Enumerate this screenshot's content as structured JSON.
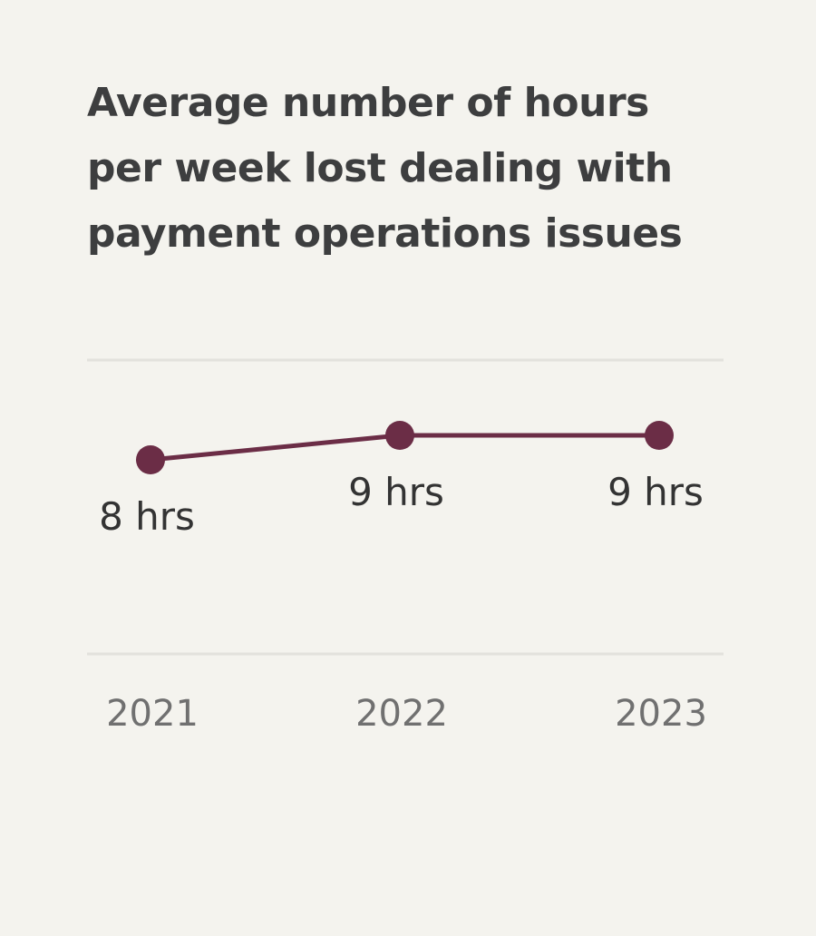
{
  "chart_data": {
    "type": "line",
    "title_lines": [
      "Average number of hours",
      "per week lost dealing with",
      "payment operations issues"
    ],
    "categories": [
      "2021",
      "2022",
      "2023"
    ],
    "values": [
      8,
      9,
      9
    ],
    "data_labels": [
      "8 hrs",
      "9 hrs",
      "9 hrs"
    ],
    "xlabel": "",
    "ylabel": "",
    "grid": "top and bottom horizontal rules",
    "colors": {
      "line": "#6b2d46",
      "grid": "#e2e1dc",
      "background": "#f4f3ee"
    }
  }
}
